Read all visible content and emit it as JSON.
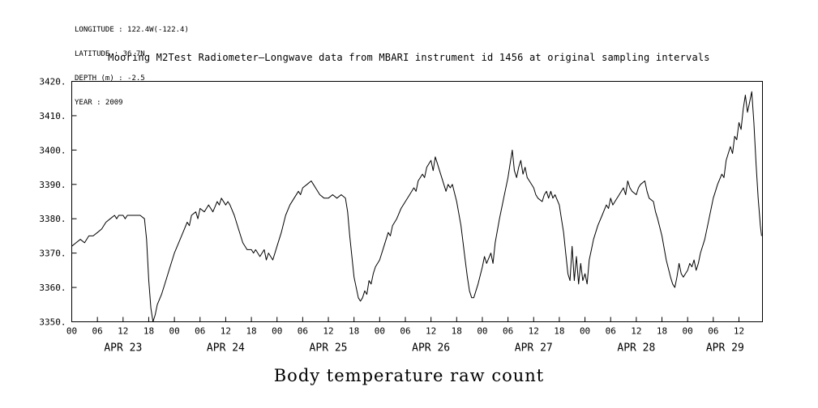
{
  "page": {
    "background": "#ffffff",
    "text_color": "#000000"
  },
  "meta": {
    "lines": [
      "LONGITUDE : 122.4W(-122.4)",
      "LATITUDE : 36.7N",
      "DEPTH (m) : -2.5",
      "YEAR : 2009"
    ]
  },
  "chart_data": {
    "type": "line",
    "title": "Mooring M2Test Radiometer—Longwave data from MBARI instrument id 1456 at original sampling intervals",
    "xlabel": "Body temperature raw count",
    "ylabel": "",
    "grid": false,
    "line_color": "#000000",
    "ylim": [
      3350,
      3420
    ],
    "ytick_step": 10,
    "ytick_labels": [
      "3350.",
      "3360.",
      "3370.",
      "3380.",
      "3390.",
      "3400.",
      "3410.",
      "3420."
    ],
    "x_unit": "hours from APR 23 00:00",
    "xlim_hours": [
      0,
      161.5
    ],
    "hour_tick_step": 6,
    "hour_tick_label_cycle": [
      "00",
      "06",
      "12",
      "18"
    ],
    "day_labels": [
      "APR 23",
      "APR 24",
      "APR 25",
      "APR 26",
      "APR 27",
      "APR 28",
      "APR 29"
    ],
    "series": [
      {
        "name": "body_temperature_raw_count",
        "x_hours": [
          0,
          1,
          2,
          3,
          4,
          5,
          6,
          7,
          8,
          9,
          10,
          10.5,
          11,
          12,
          12.5,
          13,
          14,
          15,
          16,
          17,
          17.5,
          18,
          18.5,
          19,
          19.5,
          20,
          21,
          22,
          23,
          24,
          25,
          26,
          27,
          27.5,
          28,
          29,
          29.5,
          30,
          31,
          32,
          33,
          34,
          34.5,
          35,
          36,
          36.5,
          37,
          38,
          39,
          40,
          41,
          42,
          42.5,
          43,
          44,
          45,
          45.5,
          46,
          47,
          48,
          49,
          50,
          51,
          52,
          53,
          53.5,
          54,
          55,
          56,
          56.5,
          57,
          58,
          59,
          60,
          61,
          62,
          63,
          64,
          64.5,
          65,
          66,
          67,
          67.5,
          68,
          68.5,
          69,
          69.5,
          70,
          70.5,
          71,
          72,
          73,
          74,
          74.5,
          75,
          76,
          77,
          78,
          79,
          80,
          80.5,
          81,
          82,
          82.5,
          83,
          84,
          84.5,
          85,
          85.5,
          86,
          87,
          87.5,
          88,
          88.5,
          89,
          90,
          91,
          92,
          92.5,
          93,
          93.5,
          94,
          95,
          96,
          96.5,
          97,
          98,
          98.5,
          99,
          100,
          101,
          102,
          102.5,
          103,
          103.5,
          104,
          104.5,
          105,
          105.5,
          106,
          106.5,
          107,
          108,
          108.5,
          109,
          110,
          110.5,
          111,
          111.5,
          112,
          112.5,
          113,
          114,
          114.5,
          115,
          115.5,
          116,
          116.5,
          117,
          117.5,
          118,
          118.5,
          119,
          119.5,
          120,
          120.5,
          121,
          121.5,
          122,
          123,
          124,
          125,
          125.5,
          126,
          126.5,
          127,
          128,
          129,
          129.5,
          130,
          130.5,
          131,
          132,
          132.5,
          133,
          134,
          134.5,
          135,
          136,
          136.5,
          137,
          138,
          139,
          140,
          140.5,
          141,
          141.5,
          142,
          142.5,
          143,
          143.5,
          144,
          144.5,
          145,
          145.5,
          146,
          146.5,
          147,
          148,
          149,
          150,
          150.5,
          151,
          152,
          152.5,
          153,
          154,
          154.5,
          155,
          155.5,
          156,
          156.5,
          157,
          157.5,
          158,
          158.5,
          159,
          159.5,
          160,
          160.5,
          161,
          161.3
        ],
        "y": [
          3372,
          3373,
          3374,
          3373,
          3375,
          3375,
          3376,
          3377,
          3379,
          3380,
          3381,
          3380,
          3381,
          3381,
          3380,
          3381,
          3381,
          3381,
          3381,
          3380,
          3374,
          3362,
          3354,
          3350,
          3352,
          3355,
          3358,
          3362,
          3366,
          3370,
          3373,
          3376,
          3379,
          3378,
          3381,
          3382,
          3380,
          3383,
          3382,
          3384,
          3382,
          3385,
          3384,
          3386,
          3384,
          3385,
          3384,
          3381,
          3377,
          3373,
          3371,
          3371,
          3370,
          3371,
          3369,
          3371,
          3368,
          3370,
          3368,
          3372,
          3376,
          3381,
          3384,
          3386,
          3388,
          3387,
          3389,
          3390,
          3391,
          3390,
          3389,
          3387,
          3386,
          3386,
          3387,
          3386,
          3387,
          3386,
          3382,
          3375,
          3363,
          3357,
          3356,
          3357,
          3359,
          3358,
          3362,
          3361,
          3364,
          3366,
          3368,
          3372,
          3376,
          3375,
          3378,
          3380,
          3383,
          3385,
          3387,
          3389,
          3388,
          3391,
          3393,
          3392,
          3395,
          3397,
          3394,
          3398,
          3396,
          3394,
          3390,
          3388,
          3390,
          3389,
          3390,
          3385,
          3378,
          3368,
          3363,
          3359,
          3357,
          3357,
          3361,
          3366,
          3369,
          3367,
          3370,
          3367,
          3373,
          3380,
          3386,
          3392,
          3396,
          3400,
          3394,
          3392,
          3395,
          3397,
          3393,
          3395,
          3392,
          3391,
          3389,
          3387,
          3386,
          3385,
          3387,
          3388,
          3386,
          3388,
          3386,
          3387,
          3384,
          3380,
          3376,
          3370,
          3364,
          3362,
          3372,
          3362,
          3369,
          3361,
          3367,
          3362,
          3364,
          3361,
          3368,
          3371,
          3374,
          3378,
          3381,
          3384,
          3383,
          3386,
          3384,
          3385,
          3387,
          3389,
          3387,
          3391,
          3389,
          3388,
          3387,
          3389,
          3390,
          3391,
          3388,
          3386,
          3385,
          3382,
          3380,
          3375,
          3368,
          3363,
          3361,
          3360,
          3363,
          3367,
          3364,
          3363,
          3364,
          3365,
          3367,
          3366,
          3368,
          3365,
          3367,
          3370,
          3374,
          3380,
          3386,
          3388,
          3390,
          3393,
          3392,
          3397,
          3401,
          3399,
          3404,
          3403,
          3408,
          3406,
          3412,
          3416,
          3411,
          3414,
          3417,
          3408,
          3396,
          3386,
          3378,
          3375
        ]
      }
    ]
  }
}
